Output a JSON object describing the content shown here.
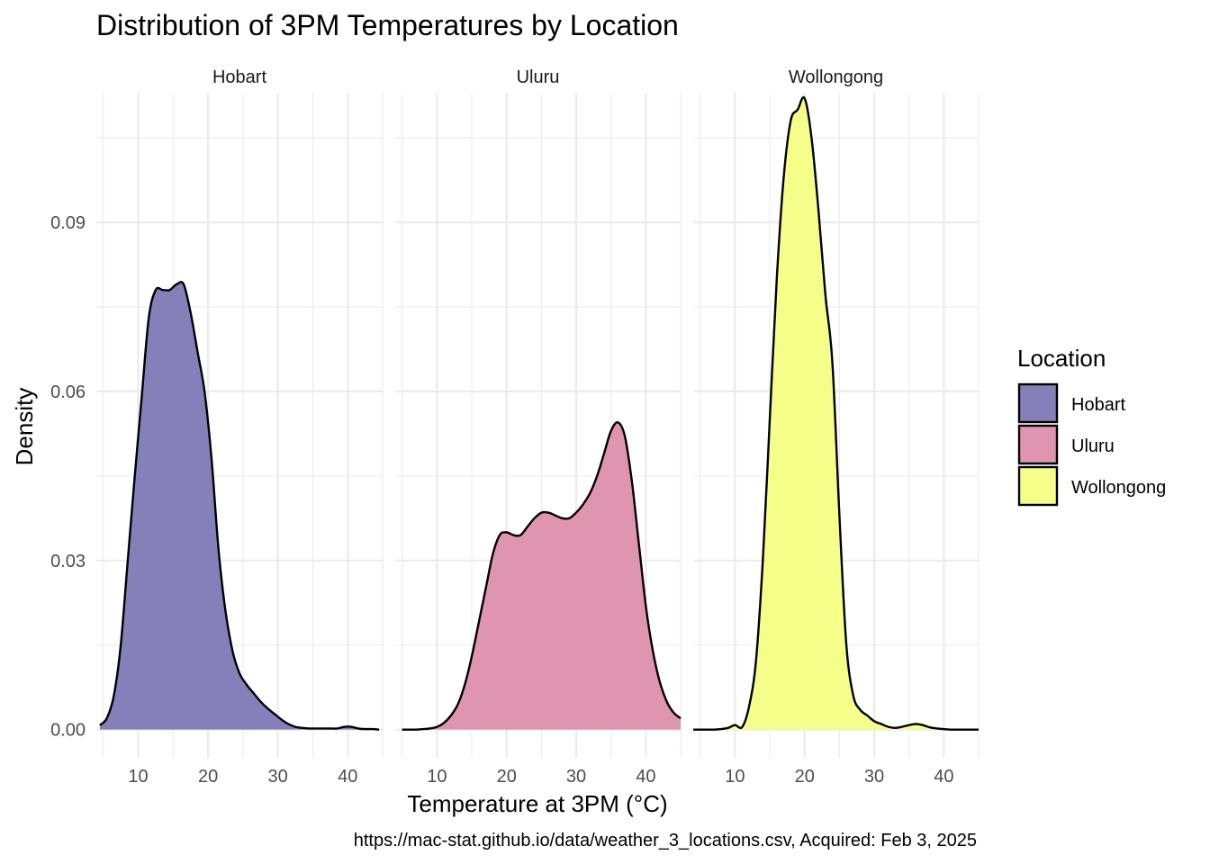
{
  "chart_data": {
    "type": "area",
    "title": "Distribution of 3PM Temperatures by Location",
    "xlabel": "Temperature at 3PM (°C)",
    "ylabel": "Density",
    "caption": "https://mac-stat.github.io/data/weather_3_locations.csv, Acquired: Feb 3, 2025",
    "xlim": [
      4,
      45
    ],
    "ylim": [
      -0.005,
      0.113
    ],
    "x_ticks": [
      "10",
      "20",
      "30",
      "40"
    ],
    "y_ticks": [
      "0.00",
      "0.03",
      "0.06",
      "0.09"
    ],
    "grid": true,
    "legend": {
      "title": "Location",
      "position": "right",
      "items": [
        "Hobart",
        "Uluru",
        "Wollongong"
      ]
    },
    "colors": {
      "Hobart": "#8580b9",
      "Uluru": "#df94b0",
      "Wollongong": "#f5fe89"
    },
    "outline_color": "#000000",
    "facets": [
      {
        "label": "Hobart",
        "series": [
          {
            "name": "Hobart",
            "x": [
              4.5,
              5.5,
              6.5,
              7.5,
              8.5,
              9.5,
              10.5,
              11.5,
              12.5,
              13.5,
              14.5,
              15.5,
              16.5,
              17.5,
              18.5,
              19.5,
              20.5,
              21.5,
              22.5,
              23.5,
              24.5,
              25.5,
              26.5,
              27.5,
              28.5,
              29.5,
              30.5,
              31.5,
              32.5,
              33.5,
              34.5,
              35.5,
              36.5,
              37.5,
              38.5,
              39.5,
              40.5,
              41.5,
              42.5,
              43.5,
              44.5
            ],
            "y": [
              0.0008,
              0.002,
              0.006,
              0.015,
              0.03,
              0.045,
              0.059,
              0.073,
              0.078,
              0.078,
              0.078,
              0.079,
              0.079,
              0.074,
              0.067,
              0.06,
              0.048,
              0.032,
              0.021,
              0.014,
              0.01,
              0.008,
              0.0065,
              0.005,
              0.0038,
              0.0028,
              0.0018,
              0.001,
              0.0005,
              0.0003,
              0.0002,
              0.0002,
              0.0002,
              0.0002,
              0.0002,
              0.0005,
              0.0005,
              0.0002,
              0.0001,
              0.0001,
              0.0
            ]
          }
        ]
      },
      {
        "label": "Uluru",
        "series": [
          {
            "name": "Uluru",
            "x": [
              5,
              6,
              7,
              8,
              9,
              10,
              11,
              12,
              13,
              14,
              15,
              16,
              17,
              18,
              19,
              20,
              21,
              22,
              23,
              24,
              25,
              26,
              27,
              28,
              29,
              30,
              31,
              32,
              33,
              34,
              35,
              36,
              37,
              38,
              39,
              40,
              41,
              42,
              43,
              44,
              45
            ],
            "y": [
              0.0,
              0.0,
              0.0,
              0.0001,
              0.0002,
              0.0005,
              0.0012,
              0.0025,
              0.0045,
              0.008,
              0.013,
              0.019,
              0.025,
              0.031,
              0.0345,
              0.035,
              0.0345,
              0.0345,
              0.036,
              0.0375,
              0.0385,
              0.0385,
              0.038,
              0.0375,
              0.0375,
              0.0385,
              0.04,
              0.042,
              0.045,
              0.049,
              0.053,
              0.0545,
              0.052,
              0.044,
              0.033,
              0.022,
              0.014,
              0.0085,
              0.005,
              0.003,
              0.002
            ]
          }
        ]
      },
      {
        "label": "Wollongong",
        "series": [
          {
            "name": "Wollongong",
            "x": [
              4,
              5,
              6,
              7,
              8,
              9,
              10,
              11,
              12,
              13,
              14,
              15,
              16,
              17,
              18,
              19,
              20,
              21,
              22,
              23,
              24,
              25,
              26,
              27,
              28,
              29,
              30,
              31,
              32,
              33,
              34,
              35,
              36,
              37,
              38,
              39,
              40,
              41,
              42,
              43,
              44,
              45
            ],
            "y": [
              0.0,
              0.0,
              0.0,
              0.0,
              0.0001,
              0.0003,
              0.0008,
              0.0004,
              0.004,
              0.012,
              0.03,
              0.055,
              0.08,
              0.098,
              0.108,
              0.11,
              0.112,
              0.105,
              0.092,
              0.077,
              0.065,
              0.038,
              0.015,
              0.006,
              0.0035,
              0.0025,
              0.0015,
              0.001,
              0.0005,
              0.0003,
              0.0005,
              0.0008,
              0.001,
              0.0008,
              0.0004,
              0.0002,
              0.0001,
              0.0,
              0.0,
              0.0,
              0.0,
              0.0
            ]
          }
        ]
      }
    ]
  }
}
